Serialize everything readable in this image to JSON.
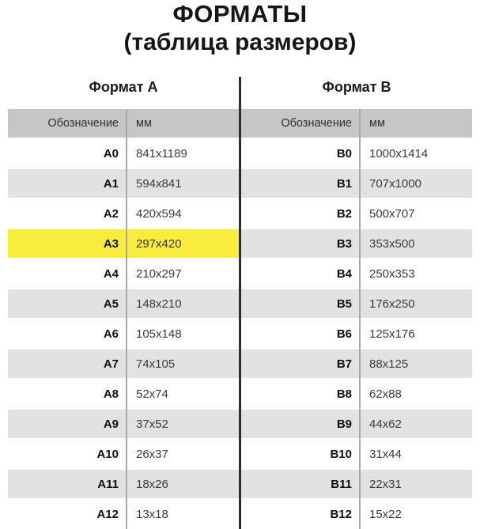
{
  "page": {
    "title": "ФОРМАТЫ",
    "subtitle": "(таблица размеров)"
  },
  "colors": {
    "header_row_bg": "#c6c6c6",
    "stripe": "#e2e2e2",
    "highlight": "#f8ec3d",
    "divider": "#2d2d2d",
    "column_line": "#a8a8a8"
  },
  "tables": [
    {
      "heading": "Формат А",
      "columns": {
        "designation": "Обозначение",
        "size_mm": "мм"
      },
      "rows": [
        {
          "designation": "A0",
          "size_mm": "841x1189",
          "highlighted": false
        },
        {
          "designation": "A1",
          "size_mm": "594x841",
          "highlighted": false
        },
        {
          "designation": "A2",
          "size_mm": "420x594",
          "highlighted": false
        },
        {
          "designation": "A3",
          "size_mm": "297x420",
          "highlighted": true
        },
        {
          "designation": "A4",
          "size_mm": "210x297",
          "highlighted": false
        },
        {
          "designation": "A5",
          "size_mm": "148x210",
          "highlighted": false
        },
        {
          "designation": "A6",
          "size_mm": "105x148",
          "highlighted": false
        },
        {
          "designation": "A7",
          "size_mm": "74x105",
          "highlighted": false
        },
        {
          "designation": "A8",
          "size_mm": "52x74",
          "highlighted": false
        },
        {
          "designation": "A9",
          "size_mm": "37x52",
          "highlighted": false
        },
        {
          "designation": "A10",
          "size_mm": "26x37",
          "highlighted": false
        },
        {
          "designation": "A11",
          "size_mm": "18x26",
          "highlighted": false
        },
        {
          "designation": "A12",
          "size_mm": "13x18",
          "highlighted": false
        }
      ]
    },
    {
      "heading": "Формат В",
      "columns": {
        "designation": "Обозначение",
        "size_mm": "мм"
      },
      "rows": [
        {
          "designation": "B0",
          "size_mm": "1000x1414",
          "highlighted": false
        },
        {
          "designation": "B1",
          "size_mm": "707x1000",
          "highlighted": false
        },
        {
          "designation": "B2",
          "size_mm": "500x707",
          "highlighted": false
        },
        {
          "designation": "B3",
          "size_mm": "353x500",
          "highlighted": false
        },
        {
          "designation": "B4",
          "size_mm": "250x353",
          "highlighted": false
        },
        {
          "designation": "B5",
          "size_mm": "176x250",
          "highlighted": false
        },
        {
          "designation": "B6",
          "size_mm": "125x176",
          "highlighted": false
        },
        {
          "designation": "B7",
          "size_mm": "88x125",
          "highlighted": false
        },
        {
          "designation": "B8",
          "size_mm": "62x88",
          "highlighted": false
        },
        {
          "designation": "B9",
          "size_mm": "44x62",
          "highlighted": false
        },
        {
          "designation": "B10",
          "size_mm": "31x44",
          "highlighted": false
        },
        {
          "designation": "B11",
          "size_mm": "22x31",
          "highlighted": false
        },
        {
          "designation": "B12",
          "size_mm": "15x22",
          "highlighted": false
        }
      ]
    }
  ]
}
